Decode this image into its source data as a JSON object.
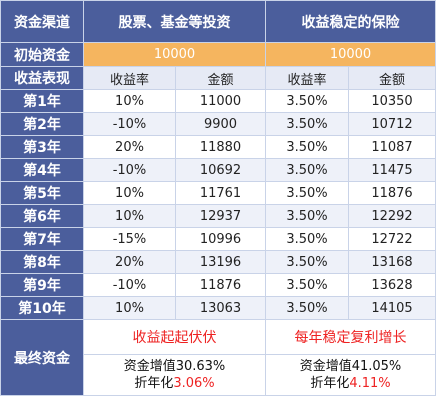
{
  "header": {
    "channel_label": "资金渠道",
    "stock_title": "股票、基金等投资",
    "insurance_title": "收益稳定的保险"
  },
  "initial": {
    "label": "初始资金",
    "stock_value": "10000",
    "insurance_value": "10000"
  },
  "performance": {
    "label": "收益表现",
    "rate_header": "收益率",
    "amount_header": "金额"
  },
  "years": [
    {
      "label": "第1年",
      "stock_rate": "10%",
      "stock_amount": "11000",
      "ins_rate": "3.50%",
      "ins_amount": "10350"
    },
    {
      "label": "第2年",
      "stock_rate": "-10%",
      "stock_amount": "9900",
      "ins_rate": "3.50%",
      "ins_amount": "10712"
    },
    {
      "label": "第3年",
      "stock_rate": "20%",
      "stock_amount": "11880",
      "ins_rate": "3.50%",
      "ins_amount": "11087"
    },
    {
      "label": "第4年",
      "stock_rate": "-10%",
      "stock_amount": "10692",
      "ins_rate": "3.50%",
      "ins_amount": "11475"
    },
    {
      "label": "第5年",
      "stock_rate": "10%",
      "stock_amount": "11761",
      "ins_rate": "3.50%",
      "ins_amount": "11876"
    },
    {
      "label": "第6年",
      "stock_rate": "10%",
      "stock_amount": "12937",
      "ins_rate": "3.50%",
      "ins_amount": "12292"
    },
    {
      "label": "第7年",
      "stock_rate": "-15%",
      "stock_amount": "10996",
      "ins_rate": "3.50%",
      "ins_amount": "12722"
    },
    {
      "label": "第8年",
      "stock_rate": "20%",
      "stock_amount": "13196",
      "ins_rate": "3.50%",
      "ins_amount": "13168"
    },
    {
      "label": "第9年",
      "stock_rate": "-10%",
      "stock_amount": "11876",
      "ins_rate": "3.50%",
      "ins_amount": "13628"
    },
    {
      "label": "第10年",
      "stock_rate": "10%",
      "stock_amount": "13063",
      "ins_rate": "3.50%",
      "ins_amount": "14105"
    }
  ],
  "final": {
    "label": "最终资金",
    "stock_note": "收益起起伏伏",
    "insurance_note": "每年稳定复利增长",
    "stock_growth": "资金增值30.63%",
    "stock_annual_prefix": "折年化",
    "stock_annual_value": "3.06%",
    "insurance_growth": "资金增值41.05%",
    "insurance_annual_prefix": "折年化",
    "insurance_annual_value": "4.11%"
  },
  "colors": {
    "header_blue": "#4b5e9c",
    "initial_orange": "#f5b55f",
    "note_red": "#ee2222",
    "stripe": "#eef1f9"
  }
}
